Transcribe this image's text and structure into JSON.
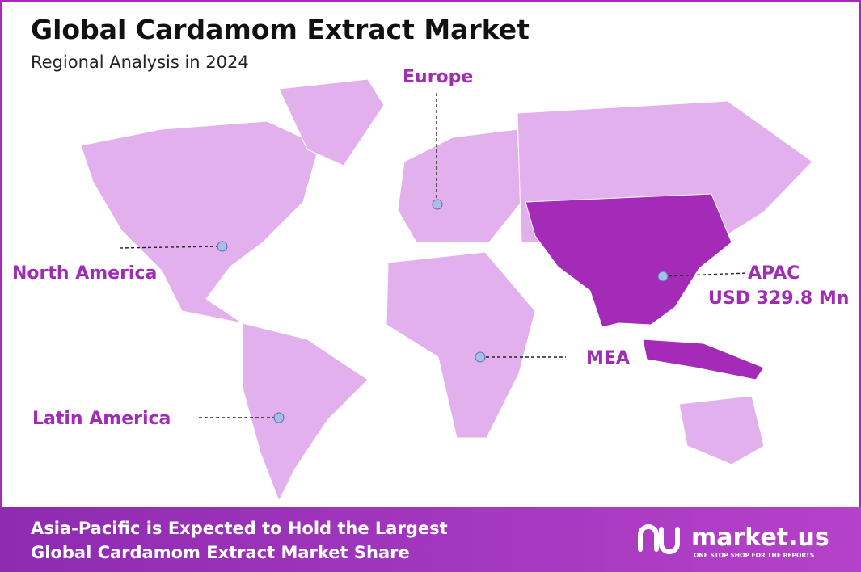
{
  "header": {
    "title": "Global Cardamom Extract Market",
    "subtitle": "Regional Analysis in 2024"
  },
  "regions": {
    "europe": "Europe",
    "north_america": "North America",
    "apac": "APAC",
    "apac_value": "USD 329.8 Mn",
    "mea": "MEA",
    "latin_america": "Latin America"
  },
  "footer": {
    "line1": "Asia-Pacific is Expected to Hold the Largest",
    "line2": "Global Cardamom Extract Market Share",
    "brand": "market.us",
    "tagline": "ONE STOP SHOP FOR THE REPORTS"
  }
}
